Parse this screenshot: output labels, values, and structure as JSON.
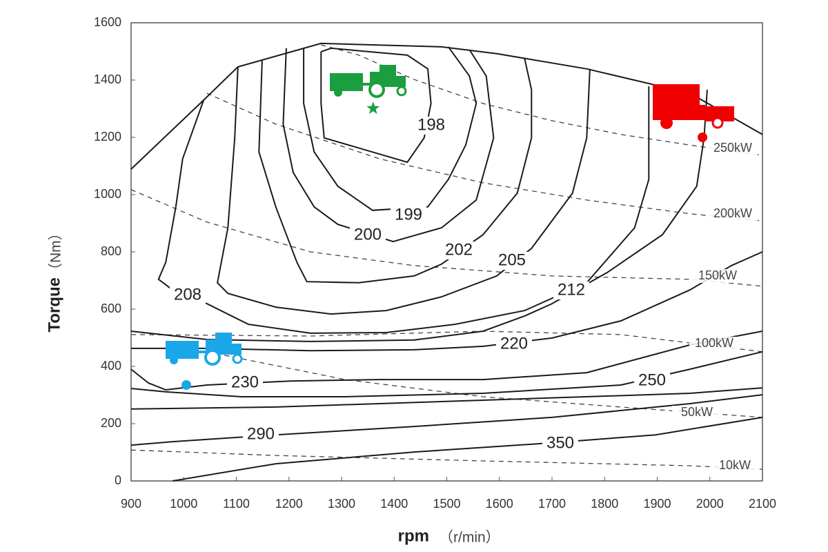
{
  "chart_data": {
    "type": "contour",
    "xlabel": "rpm",
    "xlabel_unit": "（r/min）",
    "ylabel": "Torque",
    "ylabel_unit": "（Nm）",
    "xlim": [
      900,
      2100
    ],
    "ylim": [
      0,
      1600
    ],
    "xticks": [
      900,
      1000,
      1100,
      1200,
      1300,
      1400,
      1500,
      1600,
      1700,
      1800,
      1900,
      2000,
      2100
    ],
    "yticks": [
      0,
      200,
      400,
      600,
      800,
      1000,
      1200,
      1400,
      1600
    ],
    "line_color": "#1a1a1a",
    "full_load": {
      "x": [
        900,
        1038,
        1103,
        1261,
        1490,
        1595,
        1766,
        1962,
        2100
      ],
      "values": [
        1089,
        1330,
        1446,
        1528,
        1516,
        1492,
        1439,
        1354,
        1210
      ]
    },
    "contours": [
      {
        "name": "198",
        "x": [
          1261,
          1280,
          1425,
          1464,
          1470,
          1457,
          1425,
          1267,
          1261,
          1261
        ],
        "values": [
          1499,
          1511,
          1487,
          1439,
          1318,
          1198,
          1113,
          1198,
          1318,
          1499
        ]
      },
      {
        "name": "199",
        "x": [
          1228,
          1228,
          1248,
          1293,
          1359,
          1464,
          1503,
          1536,
          1556,
          1543,
          1503
        ],
        "values": [
          1511,
          1318,
          1149,
          1029,
          945,
          957,
          1053,
          1173,
          1318,
          1414,
          1516
        ]
      },
      {
        "name": "200",
        "x": [
          1195,
          1189,
          1208,
          1248,
          1293,
          1398,
          1490,
          1556,
          1589,
          1575,
          1543
        ],
        "values": [
          1511,
          1246,
          1077,
          957,
          896,
          836,
          884,
          981,
          1198,
          1414,
          1506
        ]
      },
      {
        "name": "202",
        "x": [
          1149,
          1143,
          1175,
          1215,
          1234,
          1333,
          1438,
          1490,
          1569,
          1634,
          1661,
          1661,
          1648
        ],
        "values": [
          1467,
          1149,
          957,
          764,
          696,
          692,
          716,
          757,
          860,
          1005,
          1198,
          1366,
          1475
        ]
      },
      {
        "name": "205",
        "x": [
          1103,
          1097,
          1084,
          1064,
          1084,
          1175,
          1280,
          1385,
          1490,
          1595,
          1661,
          1739,
          1766,
          1772
        ],
        "values": [
          1446,
          1198,
          884,
          692,
          655,
          607,
          583,
          595,
          643,
          716,
          812,
          1005,
          1198,
          1439
        ]
      },
      {
        "name": "208",
        "x": [
          1038,
          998,
          985,
          966,
          952,
          979,
          1044,
          1123,
          1241,
          1385,
          1516,
          1648,
          1766,
          1857,
          1884,
          1884
        ],
        "values": [
          1330,
          1125,
          957,
          764,
          704,
          667,
          619,
          547,
          516,
          518,
          547,
          595,
          692,
          884,
          1053,
          1378
        ]
      },
      {
        "name": "212",
        "x": [
          900,
          1044,
          1241,
          1438,
          1569,
          1648,
          1700,
          1805,
          1910,
          1975,
          1989,
          1995
        ],
        "values": [
          523,
          494,
          487,
          492,
          523,
          576,
          619,
          728,
          860,
          1029,
          1198,
          1366
        ]
      },
      {
        "name": "220",
        "x": [
          900,
          1044,
          1241,
          1438,
          1569,
          1700,
          1831,
          1962,
          2041,
          2100
        ],
        "values": [
          463,
          463,
          455,
          458,
          470,
          499,
          559,
          667,
          752,
          800
        ]
      },
      {
        "name": "230",
        "x": [
          900,
          933,
          966,
          1044,
          1202,
          1372,
          1569,
          1766,
          1962,
          2100
        ],
        "values": [
          390,
          342,
          318,
          335,
          349,
          354,
          354,
          378,
          475,
          523
        ]
      },
      {
        "name": "250",
        "x": [
          900,
          966,
          1110,
          1307,
          1569,
          1831,
          1962,
          2100
        ],
        "values": [
          323,
          311,
          294,
          294,
          306,
          335,
          390,
          451
        ]
      },
      {
        "x": [
          900,
          1175,
          1569,
          1962,
          2100
        ],
        "values": [
          251,
          258,
          282,
          306,
          325
        ]
      },
      {
        "name": "290",
        "x": [
          900,
          979,
          1175,
          1438,
          1700,
          1962,
          2100
        ],
        "values": [
          125,
          137,
          161,
          190,
          222,
          270,
          301
        ]
      },
      {
        "name": "350",
        "x": [
          979,
          1175,
          1438,
          1700,
          1897,
          2100
        ],
        "values": [
          0,
          60,
          101,
          133,
          161,
          222
        ]
      }
    ],
    "power_lines": [
      {
        "name": "250kW",
        "x": [
          1261,
          1333,
          1438,
          1569,
          1700,
          1831,
          1962,
          2100
        ],
        "values": [
          1523,
          1487,
          1402,
          1318,
          1258,
          1210,
          1173,
          1137
        ]
      },
      {
        "name": "200kW",
        "x": [
          1044,
          1175,
          1372,
          1569,
          1766,
          1962,
          2100
        ],
        "values": [
          1354,
          1246,
          1125,
          1041,
          981,
          933,
          908
        ]
      },
      {
        "name": "150kW",
        "x": [
          900,
          1044,
          1241,
          1438,
          1700,
          1962,
          2100
        ],
        "values": [
          1017,
          904,
          800,
          752,
          716,
          704,
          680
        ]
      },
      {
        "name": "100kW",
        "x": [
          900,
          1241,
          1569,
          1831,
          2100
        ],
        "values": [
          511,
          506,
          523,
          511,
          451
        ]
      },
      {
        "name": "50kW",
        "x": [
          1044,
          1307,
          1569,
          1831,
          2100
        ],
        "values": [
          451,
          354,
          294,
          258,
          222
        ]
      },
      {
        "name": "10kW",
        "x": [
          900,
          1175,
          1569,
          1962,
          2100
        ],
        "values": [
          108,
          89,
          70,
          53,
          41
        ]
      }
    ],
    "markers": [
      {
        "x": 1005,
        "y": 335,
        "color": "#1aa7e8",
        "shape": "circle"
      },
      {
        "x": 1360,
        "y": 1301,
        "color": "#1a9e3f",
        "shape": "star"
      },
      {
        "x": 1986,
        "y": 1200,
        "color": "#f00000",
        "shape": "circle"
      }
    ]
  }
}
